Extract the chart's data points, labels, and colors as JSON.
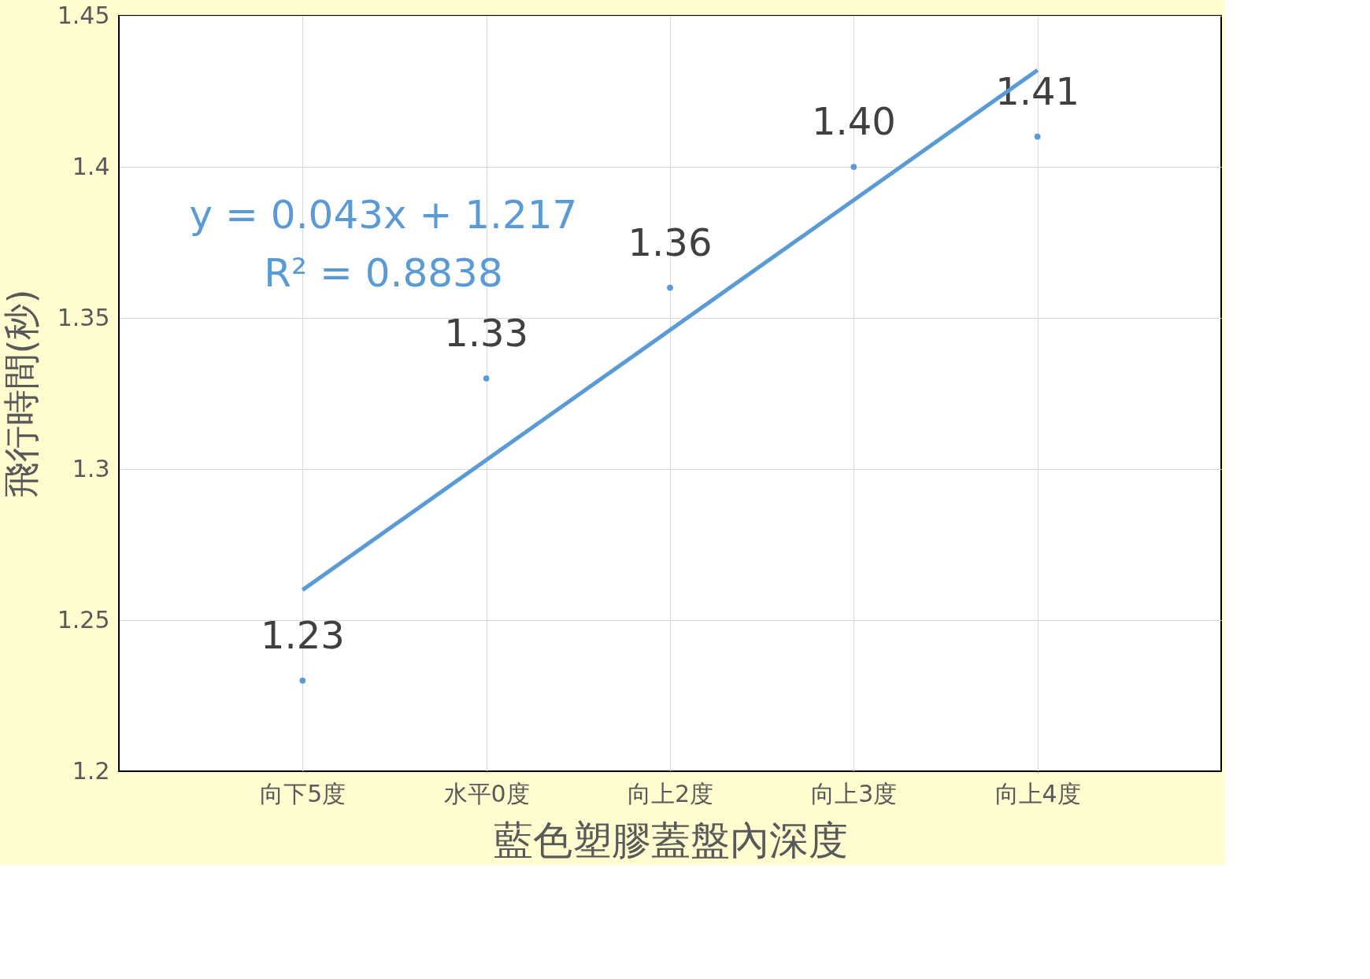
{
  "chart_data": {
    "type": "scatter",
    "xlabel": "藍色塑膠蓋盤內深度",
    "ylabel": "飛行時間(秒)",
    "categories": [
      "向下5度",
      "水平0度",
      "向上2度",
      "向上3度",
      "向上4度"
    ],
    "series": [
      {
        "color": "#5b9bd5",
        "values": [
          1.23,
          1.33,
          1.36,
          1.4,
          1.41
        ],
        "value_labels": [
          "1.23",
          "1.33",
          "1.36",
          "1.40",
          "1.41"
        ]
      },
      {
        "type": "line",
        "marker": "none",
        "color": "#5b9bd5",
        "x": [
          "向下5度",
          "向上4度"
        ],
        "values": [
          1.26,
          1.432
        ]
      }
    ],
    "annotations": [
      "y = 0.043x + 1.217",
      "R² = 0.8838"
    ],
    "ylim": [
      1.2,
      1.45
    ],
    "yticks": [
      1.2,
      1.25,
      1.3,
      1.35,
      1.4,
      1.45
    ],
    "grid": true,
    "marker": "circle",
    "line_style": "solid"
  }
}
